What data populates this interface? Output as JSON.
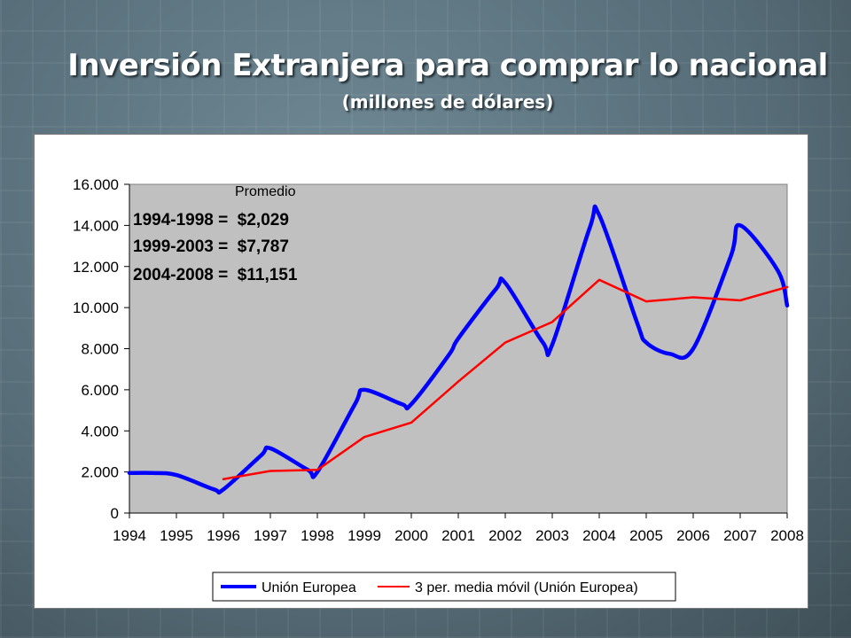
{
  "slide": {
    "title": "Inversión Extranjera para comprar lo nacional",
    "subtitle": "(millones de dólares)"
  },
  "chart_data": {
    "type": "line",
    "title": "",
    "xlabel": "",
    "ylabel": "",
    "ylim": [
      0,
      16000
    ],
    "yticks": [
      0,
      2000,
      4000,
      6000,
      8000,
      10000,
      12000,
      14000,
      16000
    ],
    "ytick_labels": [
      "0",
      "2.000",
      "4.000",
      "6.000",
      "8.000",
      "10.000",
      "12.000",
      "14.000",
      "16.000"
    ],
    "categories": [
      "1994",
      "1995",
      "1996",
      "1997",
      "1998",
      "1999",
      "2000",
      "2001",
      "2002",
      "2003",
      "2004",
      "2005",
      "2006",
      "2007",
      "2008"
    ],
    "grid": false,
    "plot_background": "#c0c0c0",
    "legend_position": "bottom",
    "series": [
      {
        "name": "Unión Europea",
        "color": "#0000ff",
        "smooth": true,
        "x": [
          1994,
          1994.5,
          1995,
          1995.8,
          1996,
          1996.8,
          1997,
          1997.8,
          1998,
          1998.8,
          1999,
          1999.8,
          2000,
          2000.8,
          2001,
          2001.8,
          2002,
          2002.8,
          2003,
          2003.8,
          2004,
          2004.8,
          2005,
          2005.5,
          2006,
          2006.8,
          2007,
          2007.8,
          2008
        ],
        "values": [
          1950,
          1950,
          1850,
          1150,
          1150,
          2800,
          3150,
          2100,
          2000,
          5300,
          6000,
          5300,
          5300,
          7700,
          8500,
          10900,
          11200,
          8300,
          8200,
          13900,
          14500,
          9300,
          8300,
          7750,
          8000,
          12500,
          14000,
          11800,
          10100
        ]
      },
      {
        "name": "3 per. media móvil (Unión Europea)",
        "color": "#ff0000",
        "smooth": false,
        "x": [
          1996,
          1997,
          1998,
          1999,
          2000,
          2001,
          2002,
          2003,
          2004,
          2005,
          2006,
          2007,
          2008
        ],
        "values": [
          1650,
          2050,
          2100,
          3700,
          4400,
          6400,
          8300,
          9300,
          11350,
          10300,
          10500,
          10350,
          11000
        ]
      }
    ],
    "annotations": {
      "heading": "Promedio",
      "lines": [
        "1994-1998 =  $2,029",
        "1999-2003 =  $7,787",
        "2004-2008 =  $11,151"
      ]
    }
  }
}
